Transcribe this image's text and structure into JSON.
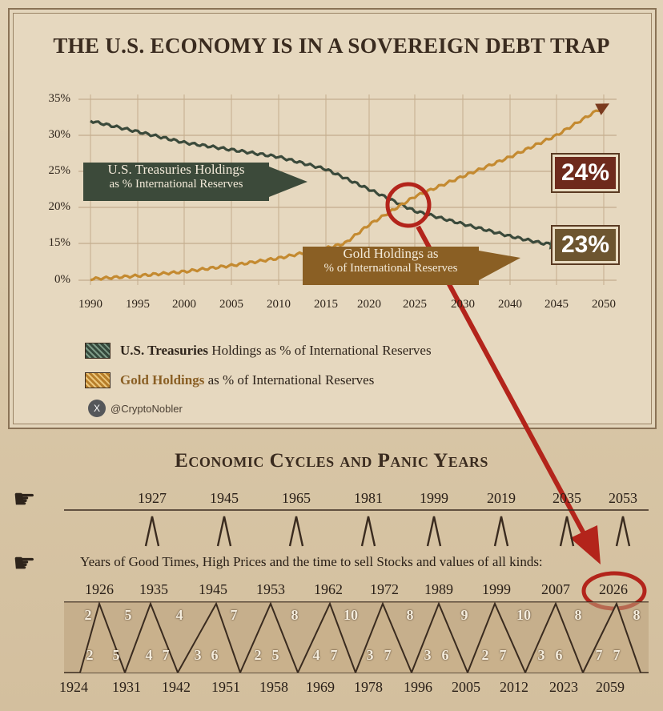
{
  "title": "THE U.S. ECONOMY IS IN A SOVEREIGN DEBT TRAP",
  "chart_data": {
    "type": "line",
    "y_ticks": [
      "35%",
      "30%",
      "25%",
      "20%",
      "15%",
      "0%"
    ],
    "x_ticks": [
      "1990",
      "1995",
      "2000",
      "2005",
      "2010",
      "2015",
      "2020",
      "2025",
      "2030",
      "2040",
      "2045",
      "2050"
    ],
    "grid": true,
    "series": [
      {
        "name": "U.S. Treasuries Holdings as % of International Reserves",
        "color": "#3b4a3b",
        "x": [
          1990,
          1995,
          2000,
          2005,
          2010,
          2015,
          2020,
          2025,
          2030,
          2040,
          2045
        ],
        "y": [
          32,
          30.5,
          29,
          28,
          27,
          25.3,
          22.5,
          19.5,
          17.7,
          16,
          14.6
        ]
      },
      {
        "name": "Gold Holdings as % of International Reserves",
        "color": "#c48a30",
        "x": [
          1990,
          1995,
          2000,
          2005,
          2010,
          2015,
          2020,
          2025,
          2030,
          2040,
          2045,
          2050
        ],
        "y": [
          0.5,
          1.8,
          3.5,
          6,
          9,
          13,
          17.6,
          21.5,
          24.3,
          27,
          30,
          34
        ]
      }
    ]
  },
  "labels": {
    "treasuries_line1": "U.S. Treasuries Holdings",
    "treasuries_line2": "as % International Reserves",
    "gold_line1": "Gold Holdings as",
    "gold_line2": "% of International Reserves",
    "value_24": "24%",
    "value_23": "23%"
  },
  "legend": [
    {
      "bold": "U.S. Treasuries",
      "rest": " Holdings as % of International Reserves",
      "color": "#2e241b"
    },
    {
      "bold": "Gold Holdings",
      "rest": " as % of International Reserves",
      "color": "#8a5f24"
    }
  ],
  "credit": "@CryptoNobler",
  "cycles": {
    "title": "Economic Cycles and Panic Years",
    "panic_years": [
      "1927",
      "1945",
      "1965",
      "1981",
      "1999",
      "2019",
      "2035",
      "2053"
    ],
    "caption": "Years of Good Times, High Prices and the time to sell Stocks and values of all kinds:",
    "good_years": [
      "1926",
      "1935",
      "1945",
      "1953",
      "1962",
      "1972",
      "1989",
      "1999",
      "2007",
      "2026"
    ],
    "top_numbers": [
      "2",
      "5",
      "4",
      "7",
      "8",
      "10",
      "8",
      "9",
      "10",
      "8",
      "8"
    ],
    "bottom_numbers": [
      "2",
      "5",
      "4",
      "7",
      "3",
      "6",
      "2",
      "5",
      "4",
      "7",
      "3",
      "7",
      "3",
      "6",
      "2",
      "7",
      "3",
      "6",
      "7",
      "7"
    ],
    "bottom_years": [
      "1924",
      "1931",
      "1942",
      "1951",
      "1958",
      "1969",
      "1978",
      "1996",
      "2005",
      "2012",
      "2023",
      "2059"
    ]
  }
}
